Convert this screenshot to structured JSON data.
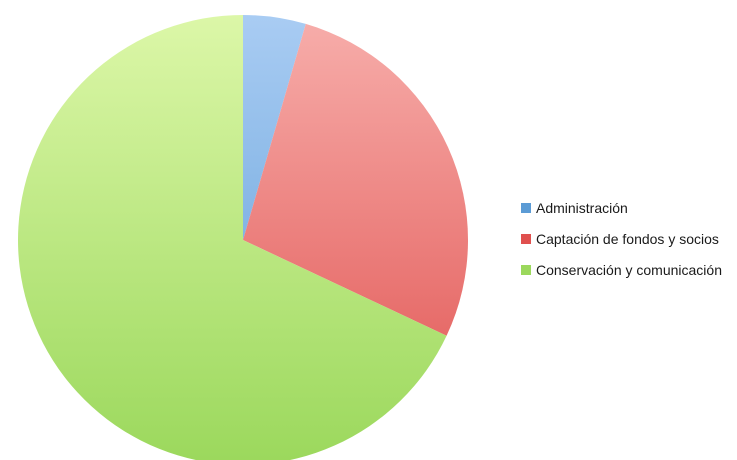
{
  "chart_data": {
    "type": "pie",
    "title": "",
    "start_angle_deg": 0,
    "direction": "clockwise",
    "legend_position": "right",
    "slices": [
      {
        "label": "Administración",
        "value": 4.5,
        "color": "#5b9bd5",
        "color_light": "#a9ccf3"
      },
      {
        "label": "Captación de fondos y socios",
        "value": 27.5,
        "color": "#e0504e",
        "color_light": "#f7aeab"
      },
      {
        "label": "Conservación y comunicación",
        "value": 68.0,
        "color": "#9bd85c",
        "color_light": "#dcf7a8"
      }
    ]
  }
}
